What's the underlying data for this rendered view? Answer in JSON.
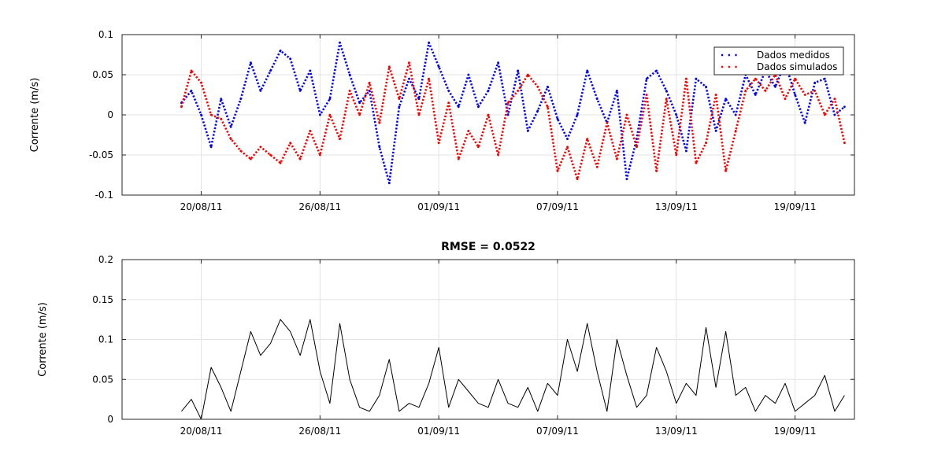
{
  "chart_data": [
    {
      "type": "scatter",
      "title": "",
      "xlabel": "",
      "ylabel": "Corrente (m/s)",
      "xlim": [
        "2011-08-16",
        "2011-09-22"
      ],
      "ylim": [
        -0.1,
        0.1
      ],
      "grid": true,
      "legend": "top-right",
      "x_ticks": [
        "20/08/11",
        "26/08/11",
        "01/09/11",
        "07/09/11",
        "13/09/11",
        "19/09/11"
      ],
      "y_ticks": [
        "0.1",
        "0.05",
        "0",
        "-0.05",
        "-0.1"
      ],
      "series": [
        {
          "name": "Dados medidos",
          "color": "#0000ff",
          "marker": "dot",
          "x": [
            "2011-08-19",
            "2011-08-19T12:00",
            "2011-08-20",
            "2011-08-20T12:00",
            "2011-08-21",
            "2011-08-21T12:00",
            "2011-08-22",
            "2011-08-22T12:00",
            "2011-08-23",
            "2011-08-23T12:00",
            "2011-08-24",
            "2011-08-24T12:00",
            "2011-08-25",
            "2011-08-25T12:00",
            "2011-08-26",
            "2011-08-26T12:00",
            "2011-08-27",
            "2011-08-27T12:00",
            "2011-08-28",
            "2011-08-28T12:00",
            "2011-08-29",
            "2011-08-29T12:00",
            "2011-08-30",
            "2011-08-30T12:00",
            "2011-08-31",
            "2011-08-31T12:00",
            "2011-09-01",
            "2011-09-01T12:00",
            "2011-09-02",
            "2011-09-02T12:00",
            "2011-09-03",
            "2011-09-03T12:00",
            "2011-09-04",
            "2011-09-04T12:00",
            "2011-09-05",
            "2011-09-05T12:00",
            "2011-09-06",
            "2011-09-06T12:00",
            "2011-09-07",
            "2011-09-07T12:00",
            "2011-09-08",
            "2011-09-08T12:00",
            "2011-09-09",
            "2011-09-09T12:00",
            "2011-09-10",
            "2011-09-10T12:00",
            "2011-09-11",
            "2011-09-11T12:00",
            "2011-09-12",
            "2011-09-12T12:00",
            "2011-09-13",
            "2011-09-13T12:00",
            "2011-09-14",
            "2011-09-14T12:00",
            "2011-09-15",
            "2011-09-15T12:00",
            "2011-09-16",
            "2011-09-16T12:00",
            "2011-09-17",
            "2011-09-17T12:00",
            "2011-09-18",
            "2011-09-18T12:00",
            "2011-09-19",
            "2011-09-19T12:00",
            "2011-09-20",
            "2011-09-20T12:00",
            "2011-09-21",
            "2011-09-21T12:00"
          ],
          "y": [
            0.015,
            0.03,
            0.0,
            -0.04,
            0.02,
            -0.015,
            0.02,
            0.065,
            0.03,
            0.055,
            0.08,
            0.07,
            0.03,
            0.055,
            0.0,
            0.02,
            0.09,
            0.05,
            0.015,
            0.03,
            -0.04,
            -0.085,
            0.01,
            0.045,
            0.02,
            0.09,
            0.06,
            0.03,
            0.01,
            0.05,
            0.01,
            0.03,
            0.065,
            0.0,
            0.055,
            -0.02,
            0.005,
            0.035,
            -0.005,
            -0.03,
            0.0,
            0.055,
            0.02,
            -0.01,
            0.03,
            -0.08,
            -0.03,
            0.045,
            0.055,
            0.03,
            0.0,
            -0.045,
            0.045,
            0.035,
            -0.02,
            0.02,
            0.0,
            0.05,
            0.025,
            0.055,
            0.035,
            0.065,
            0.025,
            -0.01,
            0.04,
            0.045,
            0.0,
            0.01
          ]
        },
        {
          "name": "Dados simulados",
          "color": "#ff0000",
          "marker": "dot",
          "x": [
            "2011-08-19",
            "2011-08-19T12:00",
            "2011-08-20",
            "2011-08-20T12:00",
            "2011-08-21",
            "2011-08-21T12:00",
            "2011-08-22",
            "2011-08-22T12:00",
            "2011-08-23",
            "2011-08-23T12:00",
            "2011-08-24",
            "2011-08-24T12:00",
            "2011-08-25",
            "2011-08-25T12:00",
            "2011-08-26",
            "2011-08-26T12:00",
            "2011-08-27",
            "2011-08-27T12:00",
            "2011-08-28",
            "2011-08-28T12:00",
            "2011-08-29",
            "2011-08-29T12:00",
            "2011-08-30",
            "2011-08-30T12:00",
            "2011-08-31",
            "2011-08-31T12:00",
            "2011-09-01",
            "2011-09-01T12:00",
            "2011-09-02",
            "2011-09-02T12:00",
            "2011-09-03",
            "2011-09-03T12:00",
            "2011-09-04",
            "2011-09-04T12:00",
            "2011-09-05",
            "2011-09-05T12:00",
            "2011-09-06",
            "2011-09-06T12:00",
            "2011-09-07",
            "2011-09-07T12:00",
            "2011-09-08",
            "2011-09-08T12:00",
            "2011-09-09",
            "2011-09-09T12:00",
            "2011-09-10",
            "2011-09-10T12:00",
            "2011-09-11",
            "2011-09-11T12:00",
            "2011-09-12",
            "2011-09-12T12:00",
            "2011-09-13",
            "2011-09-13T12:00",
            "2011-09-14",
            "2011-09-14T12:00",
            "2011-09-15",
            "2011-09-15T12:00",
            "2011-09-16",
            "2011-09-16T12:00",
            "2011-09-17",
            "2011-09-17T12:00",
            "2011-09-18",
            "2011-09-18T12:00",
            "2011-09-19",
            "2011-09-19T12:00",
            "2011-09-20",
            "2011-09-20T12:00",
            "2011-09-21",
            "2011-09-21T12:00"
          ],
          "y": [
            0.01,
            0.055,
            0.04,
            0.0,
            -0.005,
            -0.03,
            -0.045,
            -0.055,
            -0.04,
            -0.05,
            -0.06,
            -0.035,
            -0.055,
            -0.02,
            -0.05,
            0.0,
            -0.03,
            0.03,
            0.0,
            0.04,
            -0.01,
            0.06,
            0.02,
            0.065,
            0.0,
            0.045,
            -0.035,
            0.015,
            -0.055,
            -0.02,
            -0.04,
            0.0,
            -0.05,
            0.015,
            0.03,
            0.05,
            0.035,
            0.01,
            -0.07,
            -0.04,
            -0.08,
            -0.03,
            -0.065,
            -0.01,
            -0.055,
            0.0,
            -0.04,
            0.025,
            -0.07,
            0.02,
            -0.05,
            0.045,
            -0.06,
            -0.035,
            0.025,
            -0.07,
            -0.02,
            0.03,
            0.045,
            0.03,
            0.05,
            0.02,
            0.045,
            0.025,
            0.03,
            0.0,
            0.02,
            -0.035
          ]
        }
      ]
    },
    {
      "type": "line",
      "title": "RMSE = 0.0522",
      "xlabel": "",
      "ylabel": "Corrente (m/s)",
      "xlim": [
        "2011-08-16",
        "2011-09-22"
      ],
      "ylim": [
        0,
        0.2
      ],
      "grid": true,
      "x_ticks": [
        "20/08/11",
        "26/08/11",
        "01/09/11",
        "07/09/11",
        "13/09/11",
        "19/09/11"
      ],
      "y_ticks": [
        "0.2",
        "0.15",
        "0.1",
        "0.05",
        "0"
      ],
      "series": [
        {
          "color": "#000000",
          "x": [
            "2011-08-19",
            "2011-08-19T12:00",
            "2011-08-20",
            "2011-08-20T12:00",
            "2011-08-21",
            "2011-08-21T12:00",
            "2011-08-22",
            "2011-08-22T12:00",
            "2011-08-23",
            "2011-08-23T12:00",
            "2011-08-24",
            "2011-08-24T12:00",
            "2011-08-25",
            "2011-08-25T12:00",
            "2011-08-26",
            "2011-08-26T12:00",
            "2011-08-27",
            "2011-08-27T12:00",
            "2011-08-28",
            "2011-08-28T12:00",
            "2011-08-29",
            "2011-08-29T12:00",
            "2011-08-30",
            "2011-08-30T12:00",
            "2011-08-31",
            "2011-08-31T12:00",
            "2011-09-01",
            "2011-09-01T12:00",
            "2011-09-02",
            "2011-09-02T12:00",
            "2011-09-03",
            "2011-09-03T12:00",
            "2011-09-04",
            "2011-09-04T12:00",
            "2011-09-05",
            "2011-09-05T12:00",
            "2011-09-06",
            "2011-09-06T12:00",
            "2011-09-07",
            "2011-09-07T12:00",
            "2011-09-08",
            "2011-09-08T12:00",
            "2011-09-09",
            "2011-09-09T12:00",
            "2011-09-10",
            "2011-09-10T12:00",
            "2011-09-11",
            "2011-09-11T12:00",
            "2011-09-12",
            "2011-09-12T12:00",
            "2011-09-13",
            "2011-09-13T12:00",
            "2011-09-14",
            "2011-09-14T12:00",
            "2011-09-15",
            "2011-09-15T12:00",
            "2011-09-16",
            "2011-09-16T12:00",
            "2011-09-17",
            "2011-09-17T12:00",
            "2011-09-18",
            "2011-09-18T12:00",
            "2011-09-19",
            "2011-09-19T12:00",
            "2011-09-20",
            "2011-09-20T12:00",
            "2011-09-21",
            "2011-09-21T12:00"
          ],
          "y": [
            0.01,
            0.025,
            0.0,
            0.065,
            0.04,
            0.01,
            0.06,
            0.11,
            0.08,
            0.095,
            0.125,
            0.11,
            0.08,
            0.125,
            0.06,
            0.02,
            0.12,
            0.05,
            0.015,
            0.01,
            0.03,
            0.075,
            0.01,
            0.02,
            0.015,
            0.045,
            0.09,
            0.015,
            0.05,
            0.035,
            0.02,
            0.015,
            0.05,
            0.02,
            0.015,
            0.04,
            0.01,
            0.045,
            0.03,
            0.1,
            0.06,
            0.12,
            0.06,
            0.01,
            0.1,
            0.055,
            0.015,
            0.03,
            0.09,
            0.06,
            0.02,
            0.045,
            0.03,
            0.115,
            0.04,
            0.11,
            0.03,
            0.04,
            0.01,
            0.03,
            0.02,
            0.045,
            0.01,
            0.02,
            0.03,
            0.055,
            0.01,
            0.03
          ]
        }
      ]
    }
  ]
}
